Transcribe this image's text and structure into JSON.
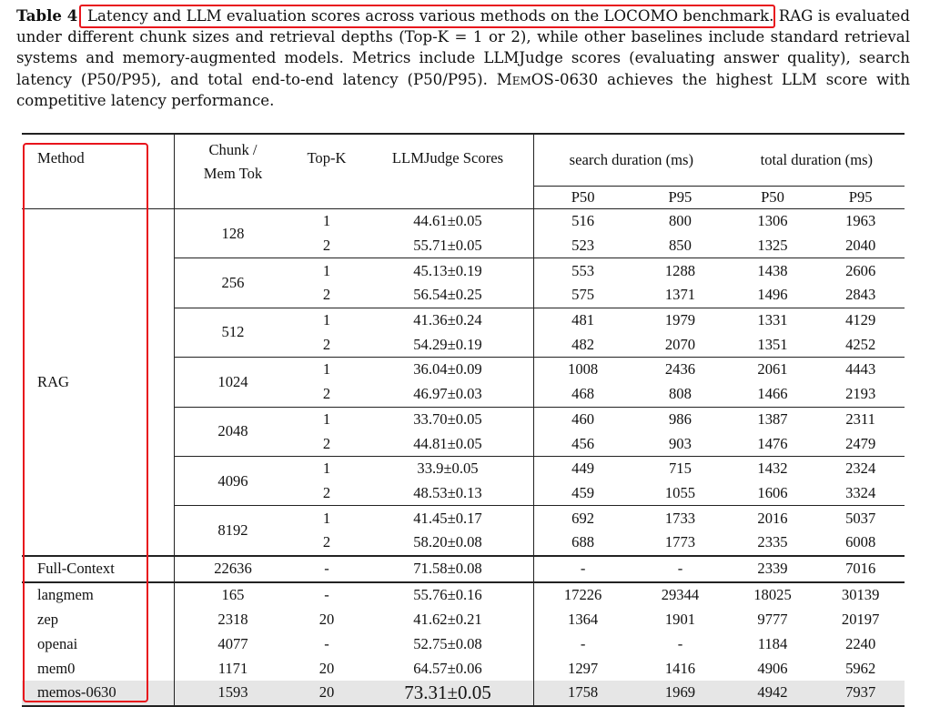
{
  "caption": {
    "label": "Table 4",
    "title": "Latency and LLM evaluation scores across various methods on the LOCOMO benchmark.",
    "body": "RAG is evaluated under different chunk sizes and retrieval depths (Top-K = 1 or 2), while other baselines include standard retrieval systems and memory-augmented models. Metrics include LLMJudge scores (evaluating answer quality), search latency (P50/P95), and total end-to-end latency (P50/P95).",
    "memos_name": "MemOS-0630",
    "tail": "achieves the highest LLM score with competitive latency performance."
  },
  "headers": {
    "method": "Method",
    "chunk_line1": "Chunk /",
    "chunk_line2": "Mem Tok",
    "topk": "Top-K",
    "score": "LLMJudge Scores",
    "search": "search duration (ms)",
    "total": "total duration (ms)",
    "p50": "P50",
    "p95": "P95"
  },
  "rag": {
    "method": "RAG",
    "groups": [
      {
        "chunk": "128",
        "rows": [
          {
            "topk": "1",
            "score": "44.61±0.05",
            "sp50": "516",
            "sp95": "800",
            "tp50": "1306",
            "tp95": "1963"
          },
          {
            "topk": "2",
            "score": "55.71±0.05",
            "sp50": "523",
            "sp95": "850",
            "tp50": "1325",
            "tp95": "2040"
          }
        ]
      },
      {
        "chunk": "256",
        "rows": [
          {
            "topk": "1",
            "score": "45.13±0.19",
            "sp50": "553",
            "sp95": "1288",
            "tp50": "1438",
            "tp95": "2606"
          },
          {
            "topk": "2",
            "score": "56.54±0.25",
            "sp50": "575",
            "sp95": "1371",
            "tp50": "1496",
            "tp95": "2843"
          }
        ]
      },
      {
        "chunk": "512",
        "rows": [
          {
            "topk": "1",
            "score": "41.36±0.24",
            "sp50": "481",
            "sp95": "1979",
            "tp50": "1331",
            "tp95": "4129"
          },
          {
            "topk": "2",
            "score": "54.29±0.19",
            "sp50": "482",
            "sp95": "2070",
            "tp50": "1351",
            "tp95": "4252"
          }
        ]
      },
      {
        "chunk": "1024",
        "rows": [
          {
            "topk": "1",
            "score": "36.04±0.09",
            "sp50": "1008",
            "sp95": "2436",
            "tp50": "2061",
            "tp95": "4443"
          },
          {
            "topk": "2",
            "score": "46.97±0.03",
            "sp50": "468",
            "sp95": "808",
            "tp50": "1466",
            "tp95": "2193"
          }
        ]
      },
      {
        "chunk": "2048",
        "rows": [
          {
            "topk": "1",
            "score": "33.70±0.05",
            "sp50": "460",
            "sp95": "986",
            "tp50": "1387",
            "tp95": "2311"
          },
          {
            "topk": "2",
            "score": "44.81±0.05",
            "sp50": "456",
            "sp95": "903",
            "tp50": "1476",
            "tp95": "2479"
          }
        ]
      },
      {
        "chunk": "4096",
        "rows": [
          {
            "topk": "1",
            "score": "33.9±0.05",
            "sp50": "449",
            "sp95": "715",
            "tp50": "1432",
            "tp95": "2324"
          },
          {
            "topk": "2",
            "score": "48.53±0.13",
            "sp50": "459",
            "sp95": "1055",
            "tp50": "1606",
            "tp95": "3324"
          }
        ]
      },
      {
        "chunk": "8192",
        "rows": [
          {
            "topk": "1",
            "score": "41.45±0.17",
            "sp50": "692",
            "sp95": "1733",
            "tp50": "2016",
            "tp95": "5037"
          },
          {
            "topk": "2",
            "score": "58.20±0.08",
            "sp50": "688",
            "sp95": "1773",
            "tp50": "2335",
            "tp95": "6008"
          }
        ]
      }
    ]
  },
  "full_context": {
    "method": "Full-Context",
    "chunk": "22636",
    "topk": "-",
    "score": "71.58±0.08",
    "sp50": "-",
    "sp95": "-",
    "tp50": "2339",
    "tp95": "7016"
  },
  "baselines": [
    {
      "method": "langmem",
      "chunk": "165",
      "topk": "-",
      "score": "55.76±0.16",
      "sp50": "17226",
      "sp95": "29344",
      "tp50": "18025",
      "tp95": "30139"
    },
    {
      "method": "zep",
      "chunk": "2318",
      "topk": "20",
      "score": "41.62±0.21",
      "sp50": "1364",
      "sp95": "1901",
      "tp50": "9777",
      "tp95": "20197"
    },
    {
      "method": "openai",
      "chunk": "4077",
      "topk": "-",
      "score": "52.75±0.08",
      "sp50": "-",
      "sp95": "-",
      "tp50": "1184",
      "tp95": "2240"
    },
    {
      "method": "mem0",
      "chunk": "1171",
      "topk": "20",
      "score": "64.57±0.06",
      "sp50": "1297",
      "sp95": "1416",
      "tp50": "4906",
      "tp95": "5962"
    },
    {
      "method": "memos-0630",
      "chunk": "1593",
      "topk": "20",
      "score": "73.31±0.05",
      "sp50": "1758",
      "sp95": "1969",
      "tp50": "4942",
      "tp95": "7937"
    }
  ],
  "annotation_color": "#e8141c"
}
